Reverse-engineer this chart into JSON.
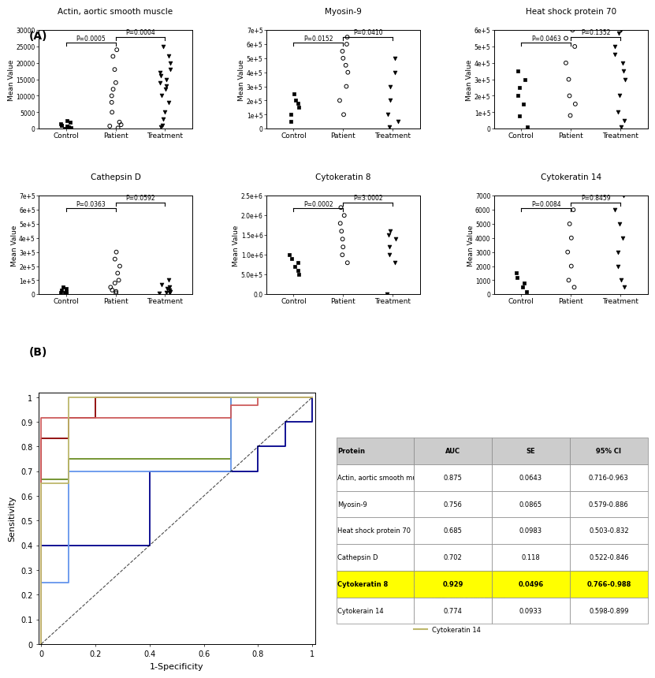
{
  "groups": [
    "Control",
    "Patient",
    "Treatment"
  ],
  "scatter_plots": [
    {
      "title": "Actin, aortic smooth muscle",
      "pval1": "P=0.0005",
      "pval2": "P=0.0004",
      "control": [
        100,
        400,
        600,
        800,
        900,
        1100,
        1500,
        2000,
        2500
      ],
      "patient": [
        200,
        800,
        1200,
        2000,
        5000,
        8000,
        10000,
        12000,
        14000,
        18000,
        22000,
        24000
      ],
      "treatment": [
        500,
        1000,
        3000,
        5000,
        8000,
        10000,
        12000,
        13000,
        14000,
        15000,
        16000,
        17000,
        18000,
        20000,
        22000,
        25000
      ],
      "ylim": [
        0,
        30000
      ],
      "yticks": [
        0,
        5000,
        10000,
        15000,
        20000,
        25000,
        30000
      ],
      "ytick_labels": [
        "0",
        "5000",
        "10000",
        "15000",
        "20000",
        "25000",
        "30000"
      ]
    },
    {
      "title": "Myosin-9",
      "pval1": "P=0.0152",
      "pval2": "P=0.0410",
      "control": [
        50000,
        100000,
        150000,
        180000,
        200000,
        250000
      ],
      "patient": [
        100000,
        200000,
        300000,
        400000,
        450000,
        500000,
        550000,
        600000,
        650000
      ],
      "treatment": [
        10000,
        50000,
        100000,
        200000,
        300000,
        400000,
        500000
      ],
      "ylim": [
        0,
        700000
      ],
      "yticks": [
        0,
        100000,
        200000,
        300000,
        400000,
        500000,
        600000,
        700000
      ],
      "ytick_labels": [
        "0",
        "1e+5",
        "2e+5",
        "3e+5",
        "4e+5",
        "5e+5",
        "6e+5",
        "7e+5"
      ]
    },
    {
      "title": "Heat shock protein 70",
      "pval1": "P=0.0463",
      "pval2": "P=0.1352",
      "control": [
        10000,
        80000,
        150000,
        200000,
        250000,
        300000,
        350000
      ],
      "patient": [
        80000,
        150000,
        200000,
        300000,
        400000,
        500000,
        550000,
        600000
      ],
      "treatment": [
        10000,
        50000,
        100000,
        200000,
        300000,
        350000,
        400000,
        450000,
        500000,
        580000,
        600000
      ],
      "ylim": [
        0,
        600000
      ],
      "yticks": [
        0,
        100000,
        200000,
        300000,
        400000,
        500000,
        600000
      ],
      "ytick_labels": [
        "0",
        "1e+5",
        "2e+5",
        "3e+5",
        "4e+5",
        "5e+5",
        "6e+5"
      ]
    },
    {
      "title": "Cathepsin D",
      "pval1": "P=0.0363",
      "pval2": "P=0.0592",
      "control": [
        5000,
        10000,
        15000,
        20000,
        30000,
        40000,
        50000
      ],
      "patient": [
        10000,
        20000,
        30000,
        50000,
        80000,
        100000,
        150000,
        200000,
        250000,
        300000
      ],
      "treatment": [
        5000,
        10000,
        15000,
        20000,
        30000,
        40000,
        50000,
        70000,
        100000
      ],
      "ylim": [
        0,
        700000
      ],
      "yticks": [
        0,
        100000,
        200000,
        300000,
        400000,
        500000,
        600000,
        700000
      ],
      "ytick_labels": [
        "0",
        "1e+5",
        "2e+5",
        "3e+5",
        "4e+5",
        "5e+5",
        "6e+5",
        "7e+5"
      ]
    },
    {
      "title": "Cytokeratin 8",
      "pval1": "P=0.0002",
      "pval2": "P=3.0002",
      "control": [
        500000,
        600000,
        700000,
        800000,
        900000,
        1000000
      ],
      "patient": [
        800000,
        1000000,
        1200000,
        1400000,
        1600000,
        1800000,
        2000000,
        2200000
      ],
      "treatment": [
        100,
        800000,
        1000000,
        1200000,
        1400000,
        1500000,
        1600000
      ],
      "ylim": [
        0,
        2500000
      ],
      "yticks": [
        0,
        500000,
        1000000,
        1500000,
        2000000,
        2500000
      ],
      "ytick_labels": [
        "0.0",
        "5.0e+5",
        "1.0e+6",
        "1.5e+6",
        "2.0e+6",
        "2.5e+6"
      ]
    },
    {
      "title": "Cytokeratin 14",
      "pval1": "P=0.0084",
      "pval2": "P=0.8459",
      "control": [
        200,
        500,
        800,
        1200,
        1500
      ],
      "patient": [
        500,
        1000,
        2000,
        3000,
        4000,
        5000,
        6000
      ],
      "treatment": [
        500,
        1000,
        2000,
        3000,
        4000,
        5000,
        6000,
        7000
      ],
      "ylim": [
        0,
        7000
      ],
      "yticks": [
        0,
        1000,
        2000,
        3000,
        4000,
        5000,
        6000,
        7000
      ],
      "ytick_labels": [
        "0",
        "1000",
        "2000",
        "3000",
        "4000",
        "5000",
        "6000",
        "7000"
      ]
    }
  ],
  "roc_curves": [
    {
      "fpr": [
        0,
        0,
        0.1,
        0.1,
        0.2,
        0.2,
        1.0
      ],
      "tpr": [
        0,
        0.833,
        0.833,
        0.917,
        0.917,
        1.0,
        1.0
      ],
      "color": "#8B0000",
      "label": "Actin, aortic smooth muscle"
    },
    {
      "fpr": [
        0,
        0,
        0.1,
        0.1,
        0.7,
        0.7,
        1.0
      ],
      "tpr": [
        0,
        0.667,
        0.667,
        0.75,
        0.75,
        1.0,
        1.0
      ],
      "color": "#6B8E23",
      "label": "Myosin-9"
    },
    {
      "fpr": [
        0,
        0,
        0.4,
        0.4,
        0.8,
        0.8,
        0.9,
        0.9,
        1.0
      ],
      "tpr": [
        0,
        0.4,
        0.4,
        0.7,
        0.7,
        0.8,
        0.8,
        0.9,
        1.0
      ],
      "color": "#00008B",
      "label": "Heat shock protein 70"
    },
    {
      "fpr": [
        0,
        0,
        0.1,
        0.1,
        0.7,
        0.7,
        1.0
      ],
      "tpr": [
        0,
        0.25,
        0.25,
        0.7,
        0.7,
        1.0,
        1.0
      ],
      "color": "#6495ED",
      "label": "Cathepsin D"
    },
    {
      "fpr": [
        0,
        0,
        0.7,
        0.7,
        0.8,
        0.8,
        1.0
      ],
      "tpr": [
        0,
        0.917,
        0.917,
        0.967,
        0.967,
        1.0,
        1.0
      ],
      "color": "#CD5C5C",
      "label": "Cytokeratin 8"
    },
    {
      "fpr": [
        0,
        0,
        0.1,
        0.1,
        0.7,
        0.7,
        1.0
      ],
      "tpr": [
        0,
        0.65,
        0.65,
        1.0,
        1.0,
        1.0,
        1.0
      ],
      "color": "#BDB76B",
      "label": "Cytokeratin 14"
    }
  ],
  "table_headers": [
    "Protein",
    "AUC",
    "SE",
    "95% CI"
  ],
  "table_rows": [
    [
      "Actin, aortic smooth muscle",
      "0.875",
      "0.0643",
      "0.716-0.963"
    ],
    [
      "Myosin-9",
      "0.756",
      "0.0865",
      "0.579-0.886"
    ],
    [
      "Heat shock protein 70",
      "0.685",
      "0.0983",
      "0.503-0.832"
    ],
    [
      "Cathepsin D",
      "0.702",
      "0.118",
      "0.522-0.846"
    ],
    [
      "Cytokeratin 8",
      "0.929",
      "0.0496",
      "0.766-0.988"
    ],
    [
      "Cytokerain 14",
      "0.774",
      "0.0933",
      "0.598-0.899"
    ]
  ],
  "highlight_row_idx": 4
}
